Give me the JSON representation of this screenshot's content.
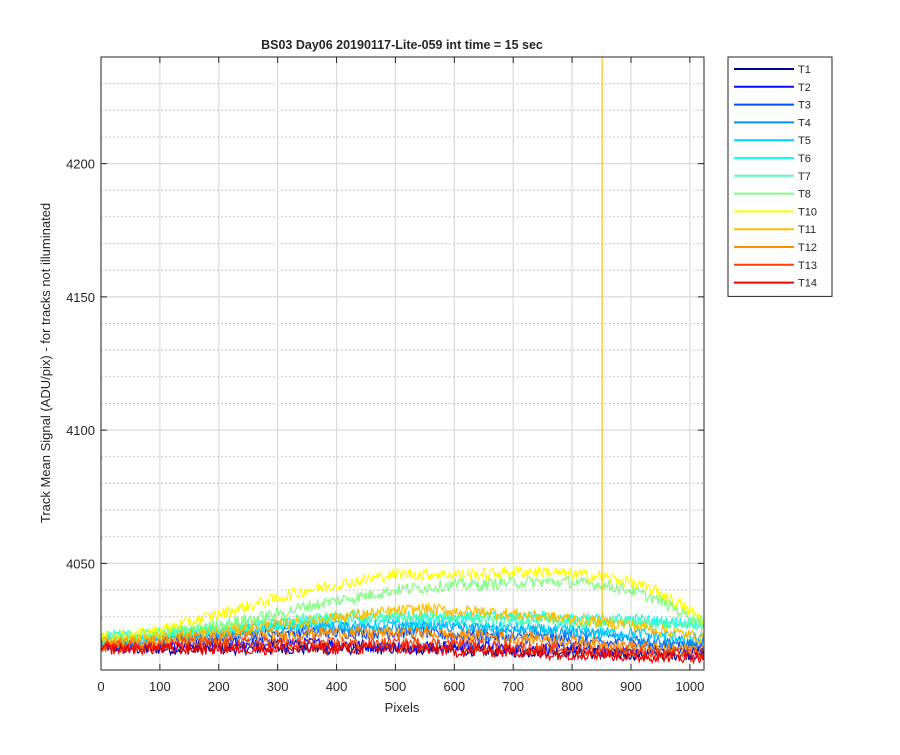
{
  "chart_data": {
    "type": "line",
    "title": "BS03 Day06 20190117-Lite-059 int time = 15 sec",
    "xlabel": "Pixels",
    "ylabel": "Track Mean Signal (ADU/pix) - for tracks not illuminated",
    "xlim": [
      0,
      1024
    ],
    "ylim": [
      4010,
      4240
    ],
    "xticks": [
      0,
      100,
      200,
      300,
      400,
      500,
      600,
      700,
      800,
      900,
      1000
    ],
    "yticks": [
      4050,
      4100,
      4150,
      4200
    ],
    "grid": true,
    "minor_grid_y": true,
    "legend_position": "outside-top-right",
    "x": [
      0,
      50,
      100,
      150,
      200,
      250,
      300,
      350,
      400,
      450,
      500,
      550,
      600,
      650,
      700,
      750,
      800,
      850,
      900,
      950,
      1000,
      1024
    ],
    "series": [
      {
        "name": "T1",
        "color": "#00008f",
        "values": [
          4019,
          4018,
          4018,
          4018,
          4018,
          4018,
          4018,
          4018,
          4018,
          4018,
          4018,
          4018,
          4018,
          4017,
          4017,
          4017,
          4017,
          4016,
          4016,
          4016,
          4016,
          4016
        ]
      },
      {
        "name": "T2",
        "color": "#0010ff",
        "values": [
          4019,
          4019,
          4019,
          4019,
          4020,
          4020,
          4020,
          4020,
          4020,
          4019,
          4019,
          4019,
          4019,
          4019,
          4018,
          4018,
          4018,
          4017,
          4017,
          4017,
          4017,
          4017
        ]
      },
      {
        "name": "T3",
        "color": "#0050ff",
        "values": [
          4020,
          4020,
          4021,
          4022,
          4022,
          4023,
          4024,
          4024,
          4024,
          4024,
          4024,
          4024,
          4023,
          4023,
          4022,
          4022,
          4021,
          4020,
          4020,
          4019,
          4019,
          4019
        ]
      },
      {
        "name": "T4",
        "color": "#0090ff",
        "values": [
          4021,
          4021,
          4022,
          4023,
          4024,
          4025,
          4026,
          4026,
          4026,
          4026,
          4026,
          4026,
          4026,
          4025,
          4025,
          4024,
          4024,
          4023,
          4022,
          4021,
          4020,
          4020
        ]
      },
      {
        "name": "T5",
        "color": "#00d0ff",
        "values": [
          4021,
          4021,
          4022,
          4023,
          4024,
          4025,
          4026,
          4027,
          4027,
          4027,
          4027,
          4027,
          4027,
          4026,
          4026,
          4025,
          4025,
          4024,
          4024,
          4023,
          4022,
          4022
        ]
      },
      {
        "name": "T6",
        "color": "#10ffef",
        "values": [
          4022,
          4022,
          4023,
          4024,
          4025,
          4026,
          4027,
          4028,
          4029,
          4029,
          4030,
          4030,
          4030,
          4030,
          4030,
          4030,
          4029,
          4029,
          4029,
          4028,
          4028,
          4028
        ]
      },
      {
        "name": "T7",
        "color": "#50ffaf",
        "values": [
          4023,
          4023,
          4024,
          4025,
          4026,
          4027,
          4028,
          4029,
          4030,
          4030,
          4030,
          4030,
          4030,
          4029,
          4029,
          4029,
          4028,
          4028,
          4028,
          4027,
          4027,
          4027
        ]
      },
      {
        "name": "T8",
        "color": "#80ff80",
        "values": [
          4021,
          4022,
          4023,
          4025,
          4027,
          4029,
          4031,
          4034,
          4036,
          4038,
          4040,
          4041,
          4042,
          4042,
          4043,
          4043,
          4043,
          4042,
          4040,
          4036,
          4030,
          4028
        ]
      },
      {
        "name": "T10",
        "color": "#ffff00",
        "values": [
          4022,
          4023,
          4025,
          4028,
          4031,
          4034,
          4037,
          4040,
          4042,
          4044,
          4046,
          4046,
          4046,
          4046,
          4047,
          4047,
          4046,
          4045,
          4043,
          4039,
          4032,
          4029
        ]
      },
      {
        "name": "T11",
        "color": "#ffbf00",
        "values": [
          4021,
          4021,
          4022,
          4023,
          4024,
          4026,
          4027,
          4028,
          4030,
          4031,
          4032,
          4033,
          4032,
          4032,
          4031,
          4030,
          4029,
          4028,
          4027,
          4025,
          4023,
          4022
        ]
      },
      {
        "name": "T12",
        "color": "#ff8f00",
        "values": [
          4020,
          4020,
          4021,
          4022,
          4022,
          4023,
          4023,
          4024,
          4024,
          4024,
          4024,
          4024,
          4023,
          4023,
          4022,
          4022,
          4021,
          4020,
          4019,
          4018,
          4018,
          4018
        ]
      },
      {
        "name": "T13",
        "color": "#ff4000",
        "values": [
          4019,
          4019,
          4019,
          4020,
          4020,
          4020,
          4020,
          4020,
          4020,
          4020,
          4020,
          4020,
          4020,
          4019,
          4019,
          4018,
          4018,
          4017,
          4017,
          4016,
          4016,
          4016
        ]
      },
      {
        "name": "T14",
        "color": "#ef0000",
        "values": [
          4018,
          4018,
          4018,
          4018,
          4018,
          4018,
          4018,
          4018,
          4018,
          4018,
          4018,
          4018,
          4017,
          4017,
          4017,
          4016,
          4016,
          4016,
          4015,
          4015,
          4015,
          4015
        ]
      }
    ],
    "spike": {
      "series": "T11",
      "x": 851,
      "y_top": 4240
    }
  }
}
